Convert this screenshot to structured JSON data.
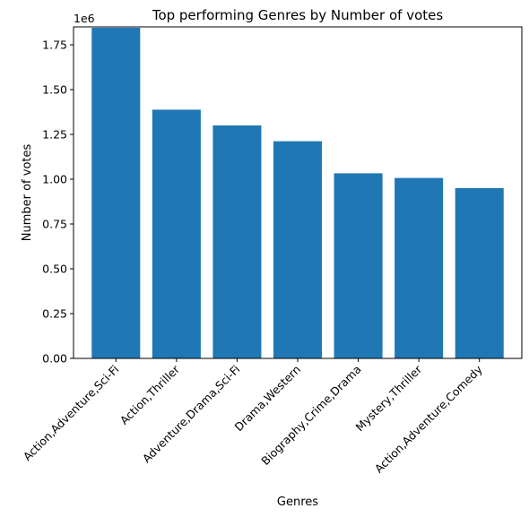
{
  "chart_data": {
    "type": "bar",
    "title": "Top performing Genres by Number of votes",
    "xlabel": "Genres",
    "ylabel": "Number of votes",
    "offset_text": "1e6",
    "categories": [
      "Action,Adventure,Sci-Fi",
      "Action,Thriller",
      "Adventure,Drama,Sci-Fi",
      "Drama,Western",
      "Biography,Crime,Drama",
      "Mystery,Thriller",
      "Action,Adventure,Comedy"
    ],
    "values": [
      1845000,
      1388000,
      1300000,
      1212000,
      1033000,
      1007000,
      950000
    ],
    "ylim": [
      0,
      1850000
    ],
    "yticks": [
      0,
      250000,
      500000,
      750000,
      1000000,
      1250000,
      1500000,
      1750000
    ],
    "ytick_labels": [
      "0.00",
      "0.25",
      "0.50",
      "0.75",
      "1.00",
      "1.25",
      "1.50",
      "1.75"
    ],
    "bar_color": "#1f77b4",
    "grid": false,
    "legend": "none"
  }
}
